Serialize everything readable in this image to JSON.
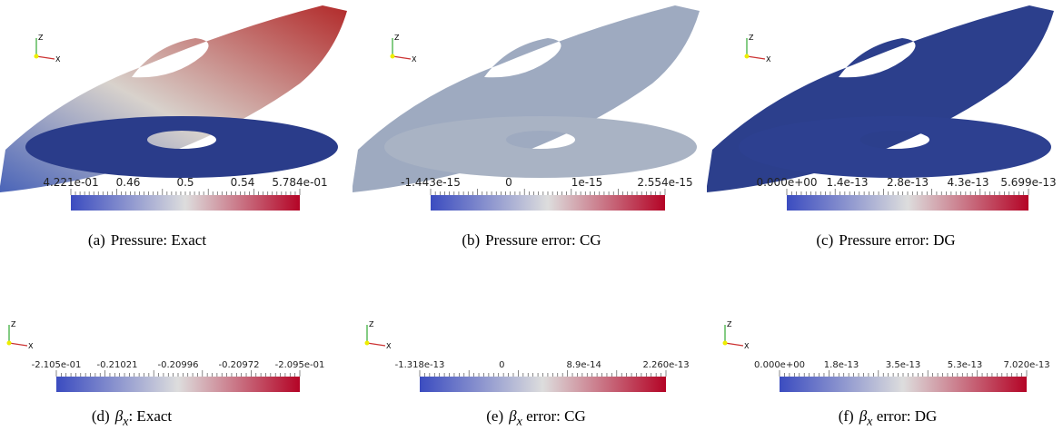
{
  "axis_labels": [
    "Z",
    "X"
  ],
  "panels": [
    {
      "label": "(a)",
      "title": "Pressure: Exact",
      "colorbar_labels": [
        "4.221e-01",
        "0.46",
        "0.5",
        "0.54",
        "5.784e-01"
      ]
    },
    {
      "label": "(b)",
      "title": "Pressure error: CG",
      "colorbar_labels": [
        "-1.443e-15",
        "0",
        "1e-15",
        "2.554e-15"
      ]
    },
    {
      "label": "(c)",
      "title": "Pressure error: DG",
      "colorbar_labels": [
        "0.000e+00",
        "1.4e-13",
        "2.8e-13",
        "4.3e-13",
        "5.699e-13"
      ]
    },
    {
      "label": "(d)",
      "symbol": "β",
      "symbol_sub": "x",
      "title": ": Exact",
      "colorbar_labels": [
        "-2.105e-01",
        "-0.21021",
        "-0.20996",
        "-0.20972",
        "-2.095e-01"
      ]
    },
    {
      "label": "(e)",
      "symbol": "β",
      "symbol_sub": "x",
      "title": " error: CG",
      "colorbar_labels": [
        "-1.318e-13",
        "0",
        "8.9e-14",
        "2.260e-13"
      ]
    },
    {
      "label": "(f)",
      "symbol": "β",
      "symbol_sub": "x",
      "title": " error: DG",
      "colorbar_labels": [
        "0.000e+00",
        "1.8e-13",
        "3.5e-13",
        "5.3e-13",
        "7.020e-13"
      ]
    }
  ]
}
